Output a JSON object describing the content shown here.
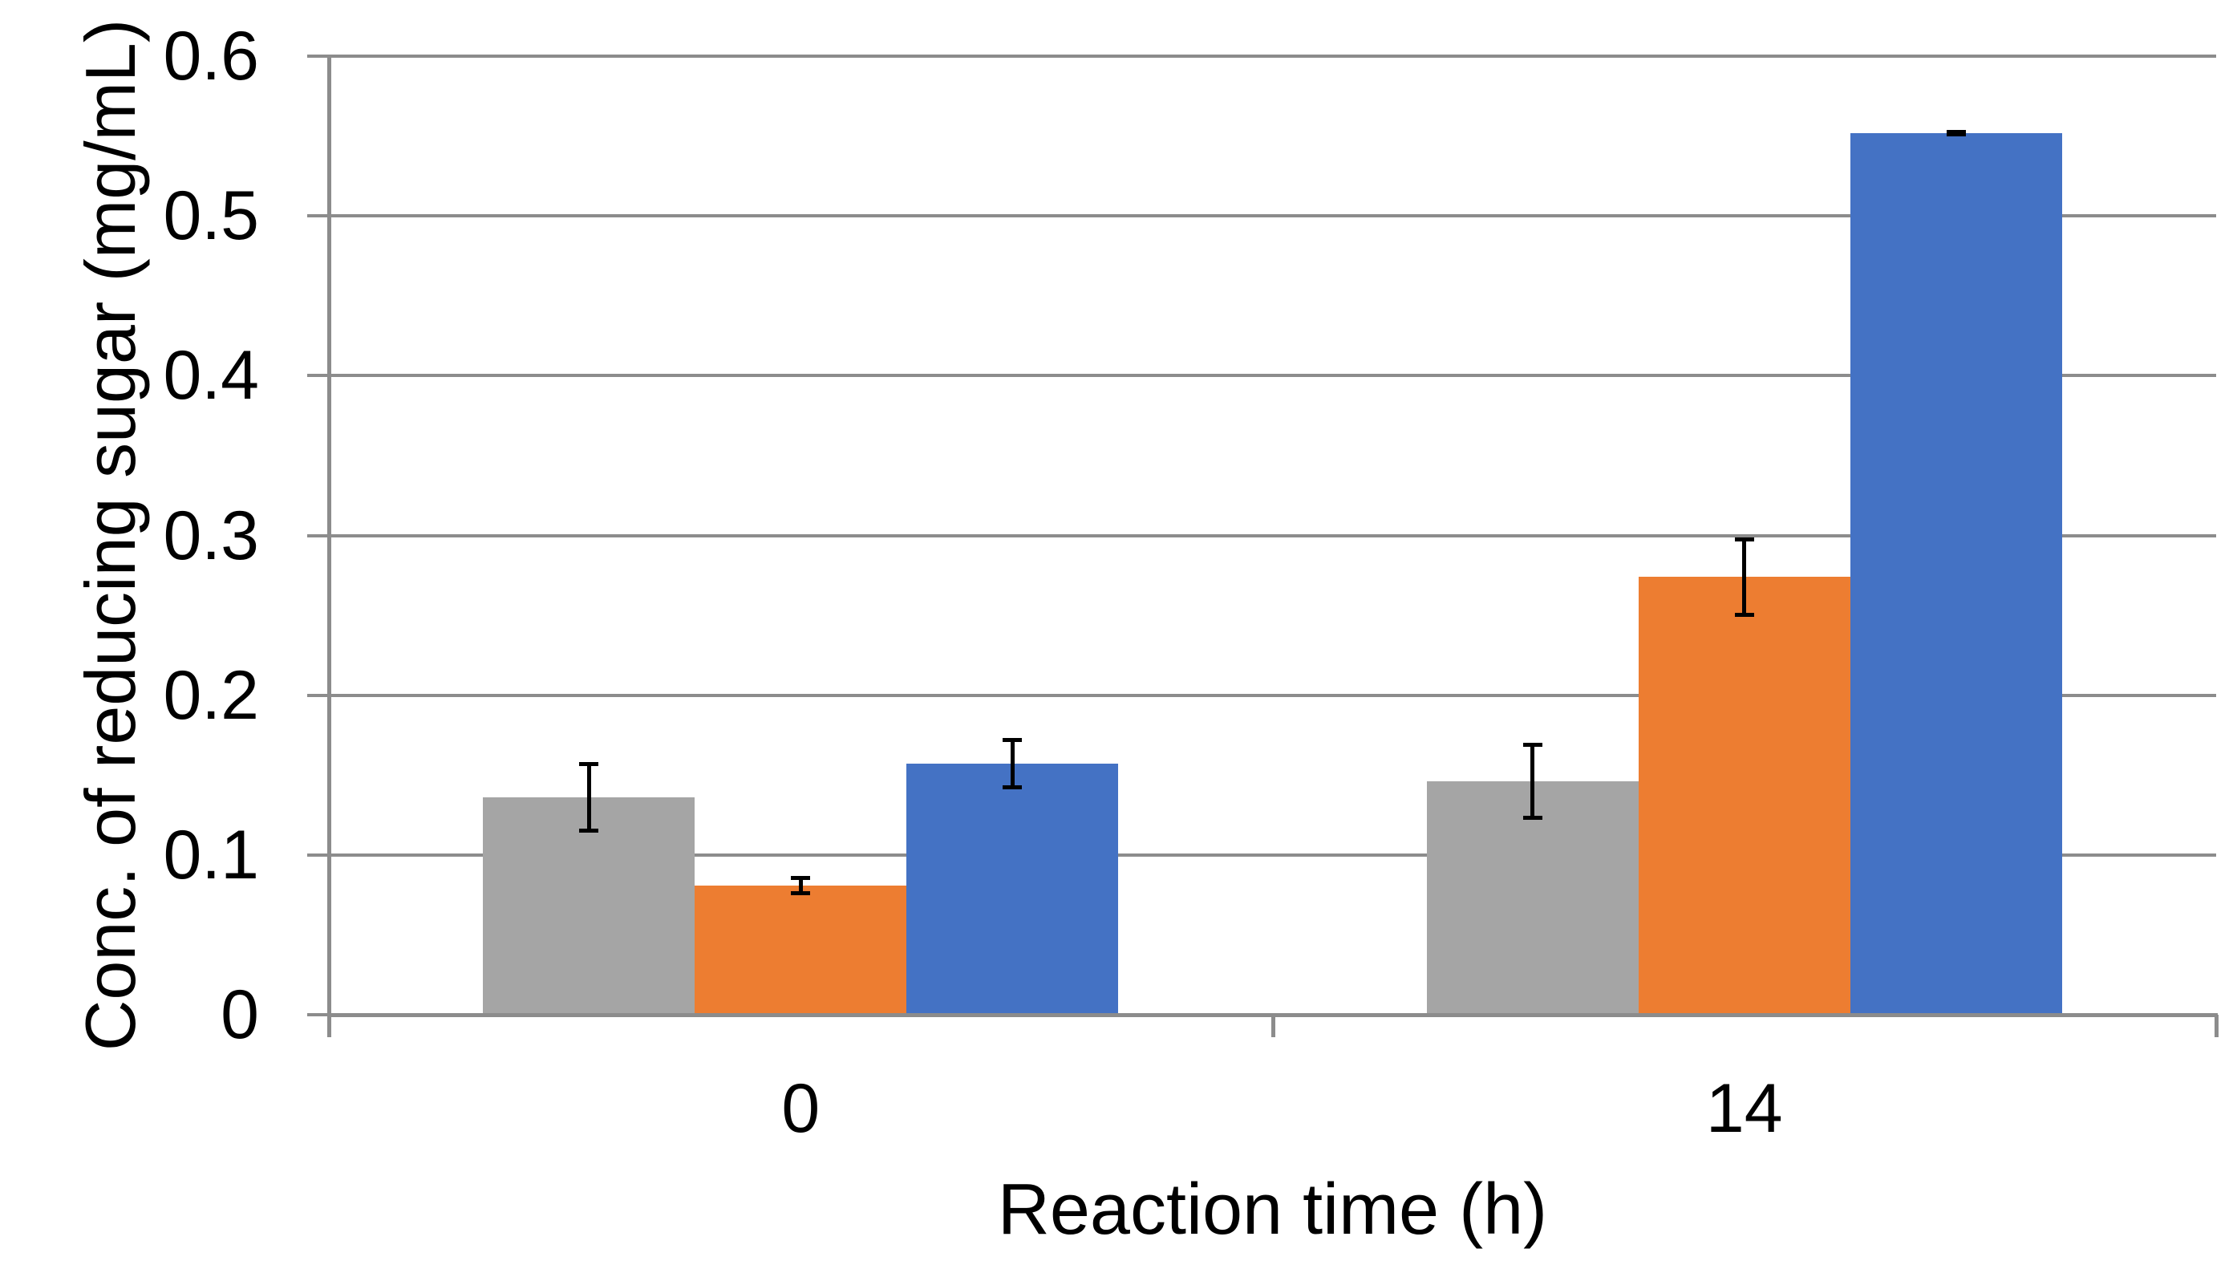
{
  "chart_data": {
    "type": "bar",
    "title": "",
    "xlabel": "Reaction time (h)",
    "ylabel": "Conc. of reducing sugar (mg/mL)",
    "categories": [
      "0",
      "14"
    ],
    "series": [
      {
        "name": "gray",
        "color": "#A5A5A5",
        "values": [
          0.136,
          0.146
        ],
        "errors": [
          0.022,
          0.024
        ]
      },
      {
        "name": "orange",
        "color": "#ED7D31",
        "values": [
          0.081,
          0.274
        ],
        "errors": [
          0.006,
          0.025
        ]
      },
      {
        "name": "blue",
        "color": "#4472C4",
        "values": [
          0.157,
          0.552
        ],
        "errors": [
          0.016,
          0.002
        ]
      }
    ],
    "ylim": [
      0,
      0.6
    ],
    "yticks": [
      0,
      0.1,
      0.2,
      0.3,
      0.4,
      0.5,
      0.6
    ],
    "ytick_labels": [
      "0",
      "0.1",
      "0.2",
      "0.3",
      "0.4",
      "0.5",
      "0.6"
    ],
    "grid": "horizontal",
    "legend": "none",
    "error_bars": true,
    "colors": {
      "gridline": "#8C8C8C",
      "axis": "#8C8C8C",
      "error_bar": "#000000",
      "text": "#000000",
      "background": "#FFFFFF"
    }
  }
}
